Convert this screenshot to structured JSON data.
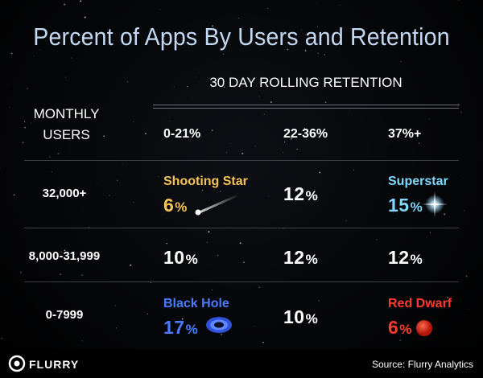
{
  "chart_data": {
    "type": "table",
    "title": "Percent of Apps By Users and Retention",
    "column_group_label": "30 DAY ROLLING RETENTION",
    "row_header_lines": [
      "MONTHLY",
      "USERS"
    ],
    "columns": [
      "0-21%",
      "22-36%",
      "37%+"
    ],
    "rows": [
      {
        "label": "32,000+",
        "cells": [
          {
            "value": 6,
            "tag": "Shooting Star",
            "tag_color": "#f6c358",
            "value_color": "#f6c358",
            "icon": "shooting-star-icon"
          },
          {
            "value": 12
          },
          {
            "value": 15,
            "tag": "Superstar",
            "tag_color": "#7fd8ff",
            "value_color": "#7fd8ff",
            "icon": "superstar-icon"
          }
        ]
      },
      {
        "label": "8,000-31,999",
        "cells": [
          {
            "value": 10
          },
          {
            "value": 12
          },
          {
            "value": 12
          }
        ]
      },
      {
        "label": "0-7999",
        "cells": [
          {
            "value": 17,
            "tag": "Black Hole",
            "tag_color": "#4a7cff",
            "value_color": "#4a7cff",
            "icon": "black-hole-icon"
          },
          {
            "value": 10
          },
          {
            "value": 6,
            "tag": "Red Dwarf",
            "tag_color": "#ff3b2f",
            "value_color": "#ff3b2f",
            "icon": "red-dwarf-icon"
          }
        ]
      }
    ],
    "value_suffix": "%"
  },
  "footer": {
    "brand": "FLURRY",
    "brand_icon": "flurry-logo-icon",
    "source": "Source: Flurry Analytics"
  },
  "colors": {
    "title": "#c3d9f3",
    "background": "#000000",
    "rule": "#6d7077"
  }
}
